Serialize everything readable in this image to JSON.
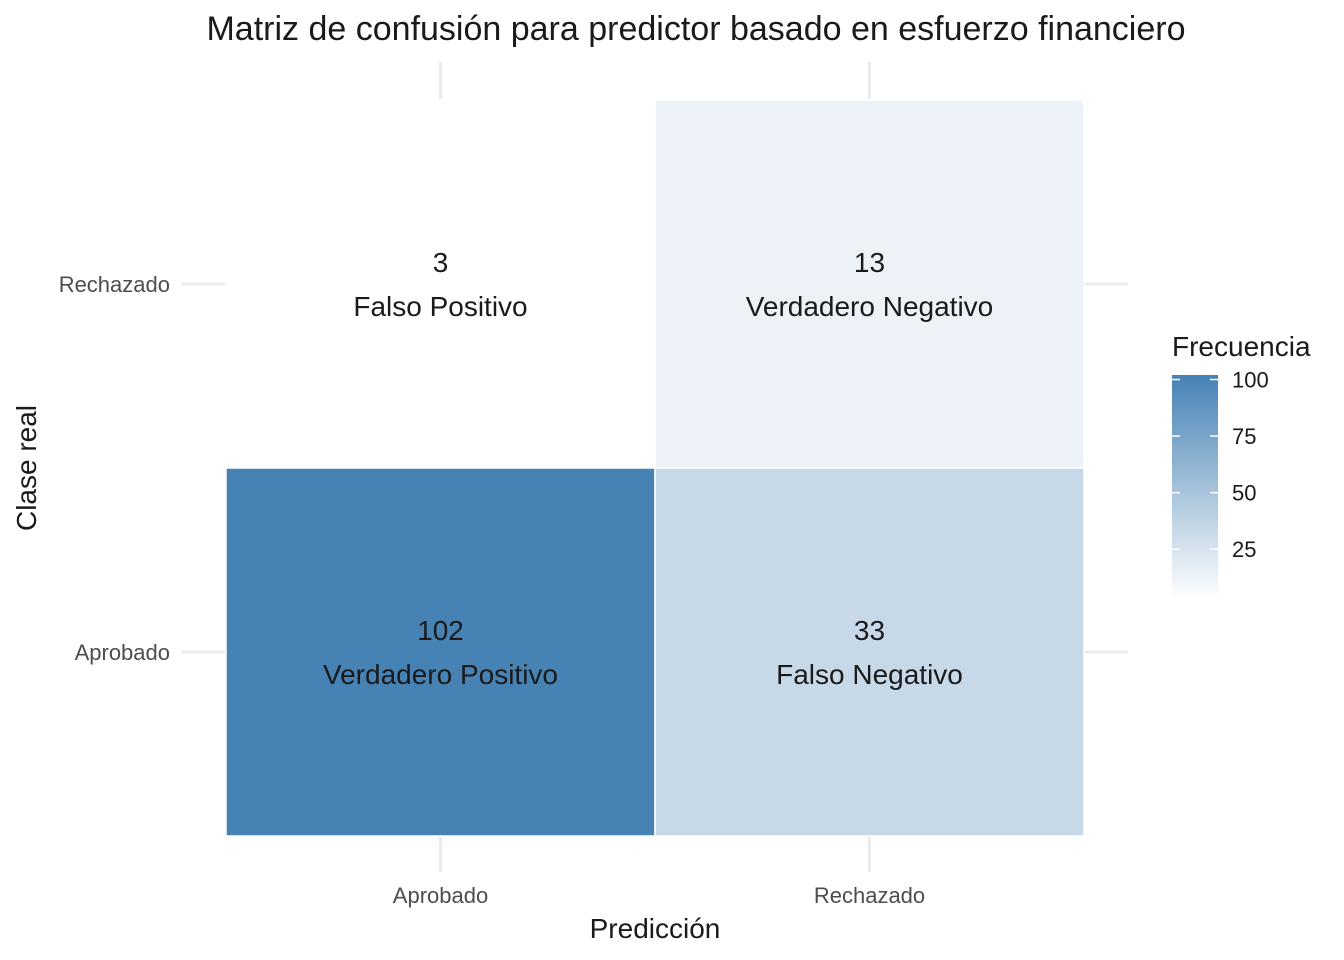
{
  "chart_data": {
    "type": "heatmap",
    "title": "Matriz de confusión para predictor basado en esfuerzo financiero",
    "xlabel": "Predicción",
    "ylabel": "Clase real",
    "x_categories": [
      "Aprobado",
      "Rechazado"
    ],
    "y_categories": [
      "Aprobado",
      "Rechazado"
    ],
    "cells": [
      {
        "x": "Aprobado",
        "y": "Rechazado",
        "value": 3,
        "label": "Falso Positivo"
      },
      {
        "x": "Rechazado",
        "y": "Rechazado",
        "value": 13,
        "label": "Verdadero Negativo"
      },
      {
        "x": "Aprobado",
        "y": "Aprobado",
        "value": 102,
        "label": "Verdadero Positivo"
      },
      {
        "x": "Rechazado",
        "y": "Aprobado",
        "value": 33,
        "label": "Falso Negativo"
      }
    ],
    "legend": {
      "title": "Frecuencia",
      "position": "right",
      "ticks": [
        25,
        50,
        75,
        100
      ],
      "low_color": "#ffffff",
      "high_color": "#4682b4"
    },
    "grid": true
  }
}
